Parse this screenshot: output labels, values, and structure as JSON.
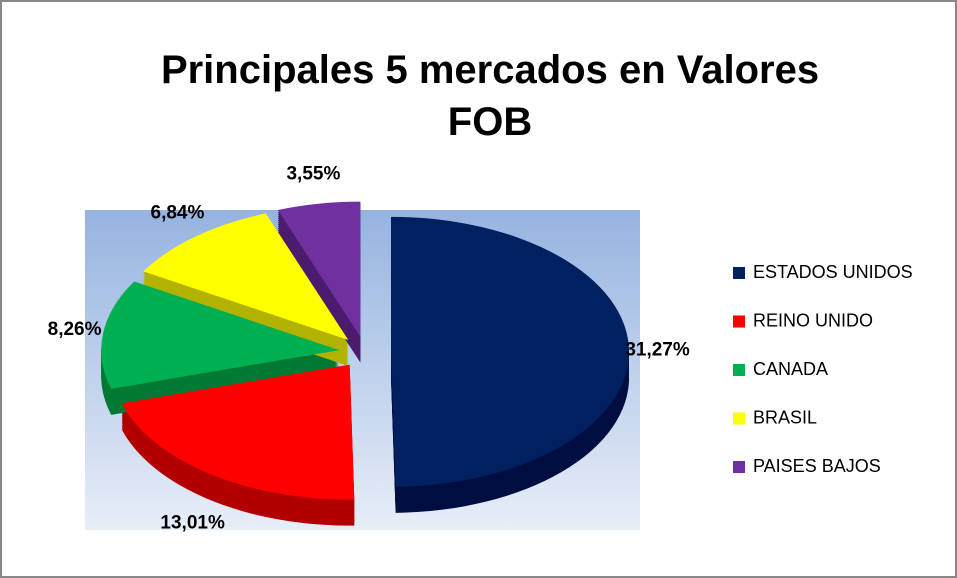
{
  "chart_data": {
    "type": "pie",
    "title": "Principales 5 mercados en Valores FOB",
    "categories": [
      "ESTADOS UNIDOS",
      "REINO UNIDO",
      "CANADA",
      "BRASIL",
      "PAISES BAJOS"
    ],
    "values": [
      31.27,
      13.01,
      8.26,
      6.84,
      3.55
    ],
    "value_labels": [
      "31,27%",
      "13,01%",
      "8,26%",
      "6,84%",
      "3,55%"
    ],
    "colors": [
      "#002060",
      "#ff0000",
      "#00b050",
      "#ffff00",
      "#7030a0"
    ],
    "legend": "right"
  }
}
